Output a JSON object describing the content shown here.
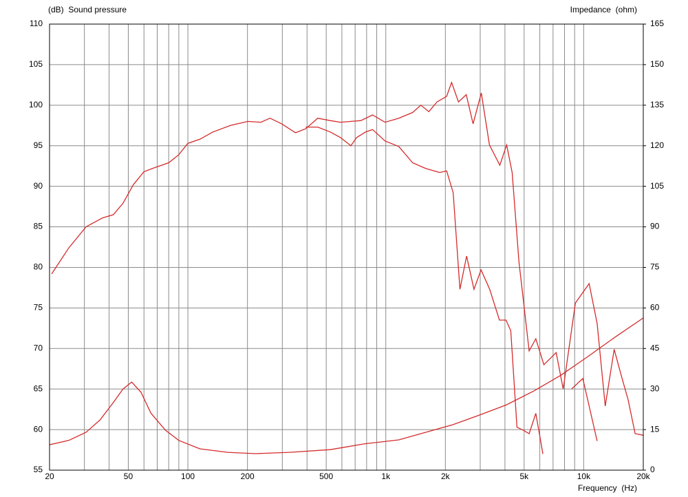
{
  "chart_data": {
    "type": "line",
    "y_label": "(dB)  Sound pressure",
    "y2_label": "Impedance  (ohm)",
    "x_label": "Frequency  (Hz)",
    "xscale": "log",
    "xlim": [
      20,
      20000
    ],
    "xticks": [
      20,
      50,
      100,
      200,
      500,
      {
        "value": 1000,
        "label": "1k"
      },
      {
        "value": 2000,
        "label": "2k"
      },
      {
        "value": 5000,
        "label": "5k"
      },
      {
        "value": 10000,
        "label": "10k"
      },
      {
        "value": 20000,
        "label": "20k"
      }
    ],
    "xminorticks": [
      30,
      40,
      60,
      70,
      80,
      90,
      300,
      400,
      600,
      700,
      800,
      900,
      3000,
      4000,
      6000,
      7000,
      8000,
      9000
    ],
    "ylim": [
      55,
      110
    ],
    "yticks": [
      55,
      60,
      65,
      70,
      75,
      80,
      85,
      90,
      95,
      100,
      105,
      110
    ],
    "y2lim": [
      0,
      165
    ],
    "y2ticks": [
      0,
      15,
      30,
      45,
      60,
      75,
      90,
      105,
      120,
      135,
      150,
      165
    ],
    "grid": true,
    "series": [
      {
        "color": "#d42a2a",
        "axis": "y",
        "x": [
          20.5,
          25,
          30.6,
          37,
          42,
          47,
          53,
          60,
          68,
          80,
          90,
          100,
          115,
          134,
          164,
          201,
          234,
          260,
          298,
          350,
          394,
          453,
          524,
          591,
          666,
          748,
          857,
          991,
          1164,
          1367,
          1504,
          1650,
          1815,
          2030,
          2150,
          2330,
          2550,
          2760,
          3040,
          3340,
          3770,
          4080,
          4350,
          4710,
          5300,
          5730,
          6290,
          7260,
          7880,
          9080,
          10650,
          11690,
          12850,
          14250,
          15470,
          16760,
          18200,
          20000
        ],
        "values": [
          79.2,
          82.4,
          85.0,
          86.1,
          86.5,
          87.9,
          90.2,
          91.8,
          92.3,
          92.9,
          93.9,
          95.3,
          95.8,
          96.7,
          97.5,
          98.0,
          97.9,
          98.4,
          97.7,
          96.6,
          97.1,
          98.4,
          98.1,
          97.9,
          98.0,
          98.1,
          98.8,
          97.9,
          98.4,
          99.1,
          100.0,
          99.2,
          100.4,
          101.1,
          102.8,
          100.4,
          101.3,
          97.7,
          101.5,
          95.1,
          92.6,
          95.1,
          91.7,
          80.7,
          69.7,
          71.2,
          68.0,
          69.5,
          65.0,
          75.6,
          78.0,
          73.1,
          62.9,
          69.9,
          66.7,
          63.7,
          59.5,
          59.3
        ]
      },
      {
        "color": "#d42a2a",
        "axis": "y",
        "x": [
          394,
          453,
          524,
          591,
          666,
          712,
          791,
          857,
          991,
          1164,
          1367,
          1592,
          1873,
          2030,
          2190,
          2370,
          2560,
          2790,
          3030,
          3350,
          3750,
          4050,
          4280,
          4600,
          4970,
          5300,
          5730,
          6220,
          6700,
          7000,
          7880,
          8670,
          9900,
          10650,
          11690,
          12600
        ],
        "values": [
          97.3,
          97.3,
          96.7,
          96.0,
          95.0,
          96.0,
          96.7,
          97.0,
          95.6,
          94.9,
          92.9,
          92.2,
          91.7,
          91.9,
          89.2,
          77.3,
          81.4,
          77.3,
          79.7,
          77.3,
          73.5,
          73.5,
          72.2,
          60.3,
          59.9,
          59.5,
          62.0,
          57.0,
          null,
          null,
          null,
          65.0,
          66.3,
          62.9,
          58.6,
          null
        ]
      },
      {
        "color": "#d42a2a",
        "axis": "y2",
        "x": [
          20,
          25,
          30.6,
          36,
          42,
          47,
          52,
          58,
          65,
          77,
          90,
          115,
          159,
          219,
          327,
          524,
          776,
          1164,
          1592,
          2180,
          2980,
          4080,
          5600,
          7660,
          10480,
          14330,
          20000
        ],
        "values": [
          9.4,
          11,
          14,
          18.6,
          25,
          30,
          32.6,
          28.8,
          21.1,
          14.8,
          11,
          7.9,
          6.6,
          6.1,
          6.6,
          7.6,
          9.7,
          11.2,
          14,
          16.8,
          20.4,
          24.2,
          29.3,
          35.1,
          42,
          49.1,
          56.3
        ]
      }
    ]
  }
}
